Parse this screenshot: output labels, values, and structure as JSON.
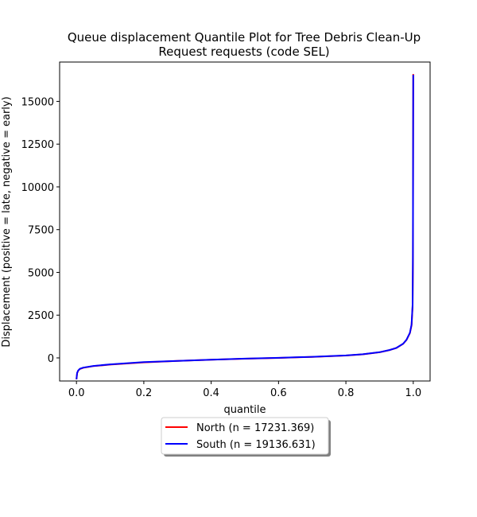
{
  "chart_data": {
    "type": "line",
    "title": [
      "Queue displacement Quantile Plot for Tree Debris Clean-Up",
      "Request  requests (code SEL)"
    ],
    "xlabel": "quantile",
    "ylabel": "Displacement (positive = late, negative = early)",
    "xlim": [
      -0.05,
      1.05
    ],
    "ylim": [
      -1350,
      17300
    ],
    "x_ticks": [
      0.0,
      0.2,
      0.4,
      0.6,
      0.8,
      1.0
    ],
    "x_tick_labels": [
      "0.0",
      "0.2",
      "0.4",
      "0.6",
      "0.8",
      "1.0"
    ],
    "y_ticks": [
      0,
      2500,
      5000,
      7500,
      10000,
      12500,
      15000
    ],
    "y_tick_labels": [
      "0",
      "2500",
      "5000",
      "7500",
      "10000",
      "12500",
      "15000"
    ],
    "grid": false,
    "legend_position": "below plot, centered",
    "series": [
      {
        "name": "North (n = 17231.369)",
        "color": "#ff0000",
        "x": [
          0.0,
          0.002,
          0.005,
          0.01,
          0.02,
          0.05,
          0.1,
          0.2,
          0.3,
          0.4,
          0.5,
          0.6,
          0.7,
          0.8,
          0.85,
          0.9,
          0.93,
          0.95,
          0.97,
          0.98,
          0.99,
          0.995,
          0.998,
          0.999,
          1.0
        ],
        "values": [
          -1250,
          -900,
          -750,
          -650,
          -580,
          -480,
          -390,
          -260,
          -180,
          -110,
          -50,
          0,
          60,
          140,
          210,
          330,
          460,
          580,
          820,
          1050,
          1450,
          1900,
          3000,
          5500,
          16600
        ]
      },
      {
        "name": "South (n = 19136.631)",
        "color": "#0000ff",
        "x": [
          0.0,
          0.002,
          0.005,
          0.01,
          0.02,
          0.05,
          0.1,
          0.2,
          0.3,
          0.4,
          0.5,
          0.6,
          0.7,
          0.8,
          0.85,
          0.9,
          0.93,
          0.95,
          0.97,
          0.98,
          0.99,
          0.995,
          0.998,
          0.999,
          1.0
        ],
        "values": [
          -1250,
          -880,
          -740,
          -640,
          -570,
          -470,
          -380,
          -250,
          -175,
          -105,
          -45,
          5,
          65,
          145,
          215,
          335,
          465,
          585,
          830,
          1060,
          1470,
          1950,
          3100,
          6000,
          16550
        ]
      }
    ]
  }
}
